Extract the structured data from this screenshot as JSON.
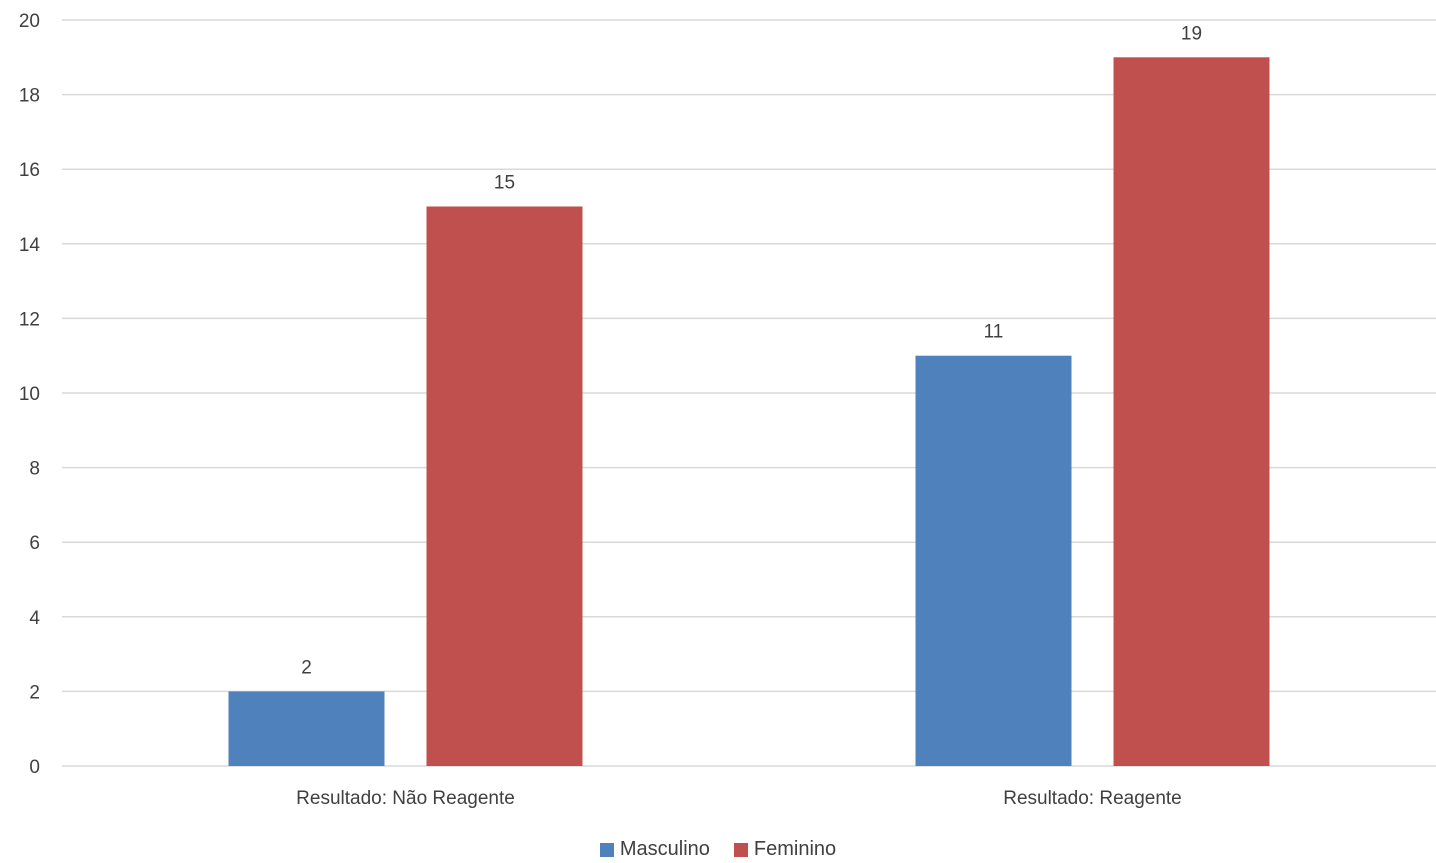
{
  "chart_data": {
    "type": "bar",
    "title": "",
    "xlabel": "",
    "ylabel": "",
    "categories": [
      "Resultado: Não Reagente",
      "Resultado: Reagente"
    ],
    "series": [
      {
        "name": "Masculino",
        "values": [
          2,
          11
        ],
        "color": "#4F81BD"
      },
      {
        "name": "Feminino",
        "values": [
          15,
          19
        ],
        "color": "#C0504D"
      }
    ],
    "ylim": [
      0,
      20
    ],
    "yticks": [
      "0",
      "2",
      "4",
      "6",
      "8",
      "10",
      "12",
      "14",
      "16",
      "18",
      "20"
    ],
    "grid": true,
    "legend_position": "bottom",
    "data_labels": true
  }
}
